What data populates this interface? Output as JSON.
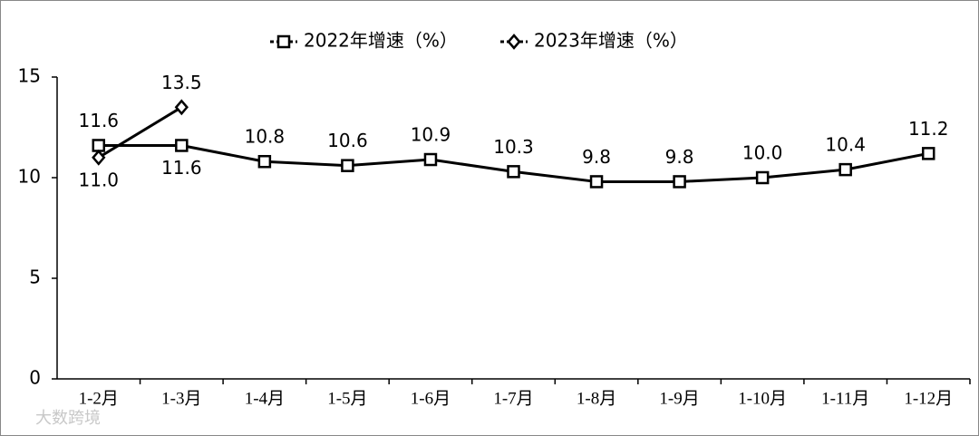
{
  "chart_data": {
    "type": "line",
    "categories": [
      "1-2月",
      "1-3月",
      "1-4月",
      "1-5月",
      "1-6月",
      "1-7月",
      "1-8月",
      "1-9月",
      "1-10月",
      "1-11月",
      "1-12月"
    ],
    "series": [
      {
        "name": "2022年增速（%）",
        "color": "#000000",
        "marker": "square",
        "values": [
          11.6,
          11.6,
          10.8,
          10.6,
          10.9,
          10.3,
          9.8,
          9.8,
          10.0,
          10.4,
          11.2
        ],
        "value_labels": [
          "11.6",
          "11.6",
          "10.8",
          "10.6",
          "10.9",
          "10.3",
          "9.8",
          "9.8",
          "10.0",
          "10.4",
          "11.2"
        ]
      },
      {
        "name": "2023年增速（%）",
        "color": "#000000",
        "marker": "diamond",
        "values": [
          11.0,
          13.5,
          null,
          null,
          null,
          null,
          null,
          null,
          null,
          null,
          null
        ],
        "value_labels": [
          "11.0",
          "13.5",
          null,
          null,
          null,
          null,
          null,
          null,
          null,
          null,
          null
        ]
      }
    ],
    "ylim": [
      0,
      15
    ],
    "yticks": [
      0,
      5,
      10,
      15
    ],
    "grid": false,
    "legend": "top",
    "watermark": "大数跨境"
  }
}
